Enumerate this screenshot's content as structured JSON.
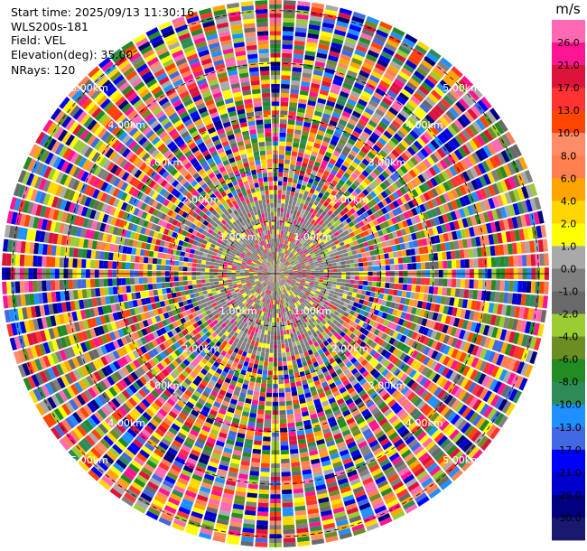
{
  "info": {
    "start_time": "Start time: 2025/09/13 11:30:16",
    "instrument": "WLS200s-181",
    "field": "Field: VEL",
    "elevation": "Elevation(deg): 35.00",
    "nrays": "NRays: 120"
  },
  "chart_data": {
    "type": "heatmap",
    "projection": "polar-ppi",
    "n_rays": 120,
    "elevation_deg": 35.0,
    "field": "VEL",
    "range_rings_km": [
      1.0,
      2.0,
      3.0,
      4.0,
      5.0
    ],
    "ring_label_suffix": "km",
    "max_range_km": 5.2,
    "colorbar": {
      "unit": "m/s",
      "tick_labels": [
        "26.0",
        "21.0",
        "17.0",
        "13.0",
        "10.0",
        "8.0",
        "6.0",
        "4.0",
        "2.0",
        "1.0",
        "0.0",
        "-1.0",
        "-2.0",
        "-4.0",
        "-6.0",
        "-8.0",
        "-10.0",
        "-13.0",
        "-17.0",
        "-21.0",
        "-26.0",
        "-30.0"
      ],
      "colors": [
        "#ff69b4",
        "#ff1493",
        "#dc143c",
        "#ff3333",
        "#ff4500",
        "#ff8c69",
        "#ff7f50",
        "#ffa500",
        "#ffd700",
        "#ffff00",
        "#a9a9a9",
        "#808080",
        "#696969",
        "#9acd32",
        "#6b8e23",
        "#228b22",
        "#2e8b57",
        "#1e90ff",
        "#4169e1",
        "#0000ff",
        "#0000cd",
        "#000080",
        "#191970"
      ]
    },
    "near_range_km": 1.6,
    "near_range_colors": [
      "#808080",
      "#a9a9a9",
      "#696969",
      "#ffff00",
      "#9acd32",
      "#ff1493",
      "#ff3333"
    ],
    "far_range_colors": [
      "#ff1493",
      "#dc143c",
      "#ff3333",
      "#ff4500",
      "#ff7f50",
      "#ffa500",
      "#ffd700",
      "#ffff00",
      "#a9a9a9",
      "#696969",
      "#9acd32",
      "#6b8e23",
      "#228b22",
      "#2e8b57",
      "#1e90ff",
      "#4169e1",
      "#0000ff",
      "#0000cd",
      "#000080",
      "#ff69b4",
      "#ff8c69",
      "#808080"
    ]
  }
}
